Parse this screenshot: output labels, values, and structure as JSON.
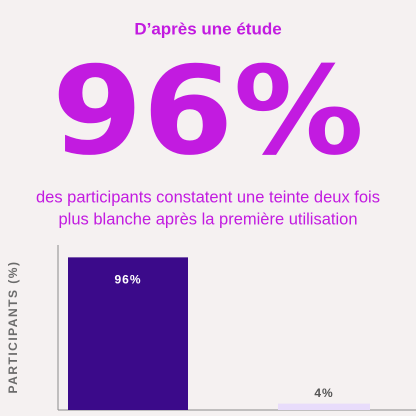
{
  "header": {
    "kicker": "D’après une étude",
    "stat": "96%",
    "description": [
      "des participants constatent une teinte deux fois",
      "plus blanche après la première utilisation"
    ]
  },
  "chart_data": {
    "type": "bar",
    "y_label": "PARTICIPANTS (%)",
    "categories": [
      null,
      null
    ],
    "values": [
      96,
      4
    ],
    "value_labels": [
      "96%",
      "4%"
    ],
    "colors": [
      "#3b0a8a",
      "#e8dcfb"
    ],
    "value_label_colors": [
      "#ffffff",
      "#555555"
    ],
    "ylim": [
      0,
      100
    ]
  }
}
